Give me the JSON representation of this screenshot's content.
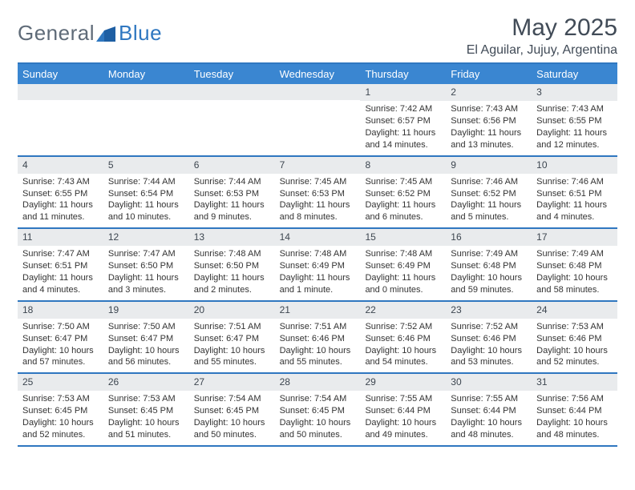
{
  "brand": {
    "name_part1": "General",
    "name_part2": "Blue",
    "text_color": "#5f6b78",
    "accent_color": "#2f77c0"
  },
  "title": {
    "month": "May 2025",
    "location": "El Aguilar, Jujuy, Argentina"
  },
  "calendar": {
    "type": "calendar",
    "header_bg": "#3a86d1",
    "header_fg": "#ffffff",
    "border_color": "#2f77c0",
    "daynum_bg": "#e9ebed",
    "body_bg": "#ffffff",
    "weekdays": [
      "Sunday",
      "Monday",
      "Tuesday",
      "Wednesday",
      "Thursday",
      "Friday",
      "Saturday"
    ],
    "weeks": [
      [
        {
          "day": "",
          "sunrise": "",
          "sunset": "",
          "daylight": ""
        },
        {
          "day": "",
          "sunrise": "",
          "sunset": "",
          "daylight": ""
        },
        {
          "day": "",
          "sunrise": "",
          "sunset": "",
          "daylight": ""
        },
        {
          "day": "",
          "sunrise": "",
          "sunset": "",
          "daylight": ""
        },
        {
          "day": "1",
          "sunrise": "Sunrise: 7:42 AM",
          "sunset": "Sunset: 6:57 PM",
          "daylight": "Daylight: 11 hours and 14 minutes."
        },
        {
          "day": "2",
          "sunrise": "Sunrise: 7:43 AM",
          "sunset": "Sunset: 6:56 PM",
          "daylight": "Daylight: 11 hours and 13 minutes."
        },
        {
          "day": "3",
          "sunrise": "Sunrise: 7:43 AM",
          "sunset": "Sunset: 6:55 PM",
          "daylight": "Daylight: 11 hours and 12 minutes."
        }
      ],
      [
        {
          "day": "4",
          "sunrise": "Sunrise: 7:43 AM",
          "sunset": "Sunset: 6:55 PM",
          "daylight": "Daylight: 11 hours and 11 minutes."
        },
        {
          "day": "5",
          "sunrise": "Sunrise: 7:44 AM",
          "sunset": "Sunset: 6:54 PM",
          "daylight": "Daylight: 11 hours and 10 minutes."
        },
        {
          "day": "6",
          "sunrise": "Sunrise: 7:44 AM",
          "sunset": "Sunset: 6:53 PM",
          "daylight": "Daylight: 11 hours and 9 minutes."
        },
        {
          "day": "7",
          "sunrise": "Sunrise: 7:45 AM",
          "sunset": "Sunset: 6:53 PM",
          "daylight": "Daylight: 11 hours and 8 minutes."
        },
        {
          "day": "8",
          "sunrise": "Sunrise: 7:45 AM",
          "sunset": "Sunset: 6:52 PM",
          "daylight": "Daylight: 11 hours and 6 minutes."
        },
        {
          "day": "9",
          "sunrise": "Sunrise: 7:46 AM",
          "sunset": "Sunset: 6:52 PM",
          "daylight": "Daylight: 11 hours and 5 minutes."
        },
        {
          "day": "10",
          "sunrise": "Sunrise: 7:46 AM",
          "sunset": "Sunset: 6:51 PM",
          "daylight": "Daylight: 11 hours and 4 minutes."
        }
      ],
      [
        {
          "day": "11",
          "sunrise": "Sunrise: 7:47 AM",
          "sunset": "Sunset: 6:51 PM",
          "daylight": "Daylight: 11 hours and 4 minutes."
        },
        {
          "day": "12",
          "sunrise": "Sunrise: 7:47 AM",
          "sunset": "Sunset: 6:50 PM",
          "daylight": "Daylight: 11 hours and 3 minutes."
        },
        {
          "day": "13",
          "sunrise": "Sunrise: 7:48 AM",
          "sunset": "Sunset: 6:50 PM",
          "daylight": "Daylight: 11 hours and 2 minutes."
        },
        {
          "day": "14",
          "sunrise": "Sunrise: 7:48 AM",
          "sunset": "Sunset: 6:49 PM",
          "daylight": "Daylight: 11 hours and 1 minute."
        },
        {
          "day": "15",
          "sunrise": "Sunrise: 7:48 AM",
          "sunset": "Sunset: 6:49 PM",
          "daylight": "Daylight: 11 hours and 0 minutes."
        },
        {
          "day": "16",
          "sunrise": "Sunrise: 7:49 AM",
          "sunset": "Sunset: 6:48 PM",
          "daylight": "Daylight: 10 hours and 59 minutes."
        },
        {
          "day": "17",
          "sunrise": "Sunrise: 7:49 AM",
          "sunset": "Sunset: 6:48 PM",
          "daylight": "Daylight: 10 hours and 58 minutes."
        }
      ],
      [
        {
          "day": "18",
          "sunrise": "Sunrise: 7:50 AM",
          "sunset": "Sunset: 6:47 PM",
          "daylight": "Daylight: 10 hours and 57 minutes."
        },
        {
          "day": "19",
          "sunrise": "Sunrise: 7:50 AM",
          "sunset": "Sunset: 6:47 PM",
          "daylight": "Daylight: 10 hours and 56 minutes."
        },
        {
          "day": "20",
          "sunrise": "Sunrise: 7:51 AM",
          "sunset": "Sunset: 6:47 PM",
          "daylight": "Daylight: 10 hours and 55 minutes."
        },
        {
          "day": "21",
          "sunrise": "Sunrise: 7:51 AM",
          "sunset": "Sunset: 6:46 PM",
          "daylight": "Daylight: 10 hours and 55 minutes."
        },
        {
          "day": "22",
          "sunrise": "Sunrise: 7:52 AM",
          "sunset": "Sunset: 6:46 PM",
          "daylight": "Daylight: 10 hours and 54 minutes."
        },
        {
          "day": "23",
          "sunrise": "Sunrise: 7:52 AM",
          "sunset": "Sunset: 6:46 PM",
          "daylight": "Daylight: 10 hours and 53 minutes."
        },
        {
          "day": "24",
          "sunrise": "Sunrise: 7:53 AM",
          "sunset": "Sunset: 6:46 PM",
          "daylight": "Daylight: 10 hours and 52 minutes."
        }
      ],
      [
        {
          "day": "25",
          "sunrise": "Sunrise: 7:53 AM",
          "sunset": "Sunset: 6:45 PM",
          "daylight": "Daylight: 10 hours and 52 minutes."
        },
        {
          "day": "26",
          "sunrise": "Sunrise: 7:53 AM",
          "sunset": "Sunset: 6:45 PM",
          "daylight": "Daylight: 10 hours and 51 minutes."
        },
        {
          "day": "27",
          "sunrise": "Sunrise: 7:54 AM",
          "sunset": "Sunset: 6:45 PM",
          "daylight": "Daylight: 10 hours and 50 minutes."
        },
        {
          "day": "28",
          "sunrise": "Sunrise: 7:54 AM",
          "sunset": "Sunset: 6:45 PM",
          "daylight": "Daylight: 10 hours and 50 minutes."
        },
        {
          "day": "29",
          "sunrise": "Sunrise: 7:55 AM",
          "sunset": "Sunset: 6:44 PM",
          "daylight": "Daylight: 10 hours and 49 minutes."
        },
        {
          "day": "30",
          "sunrise": "Sunrise: 7:55 AM",
          "sunset": "Sunset: 6:44 PM",
          "daylight": "Daylight: 10 hours and 48 minutes."
        },
        {
          "day": "31",
          "sunrise": "Sunrise: 7:56 AM",
          "sunset": "Sunset: 6:44 PM",
          "daylight": "Daylight: 10 hours and 48 minutes."
        }
      ]
    ]
  }
}
